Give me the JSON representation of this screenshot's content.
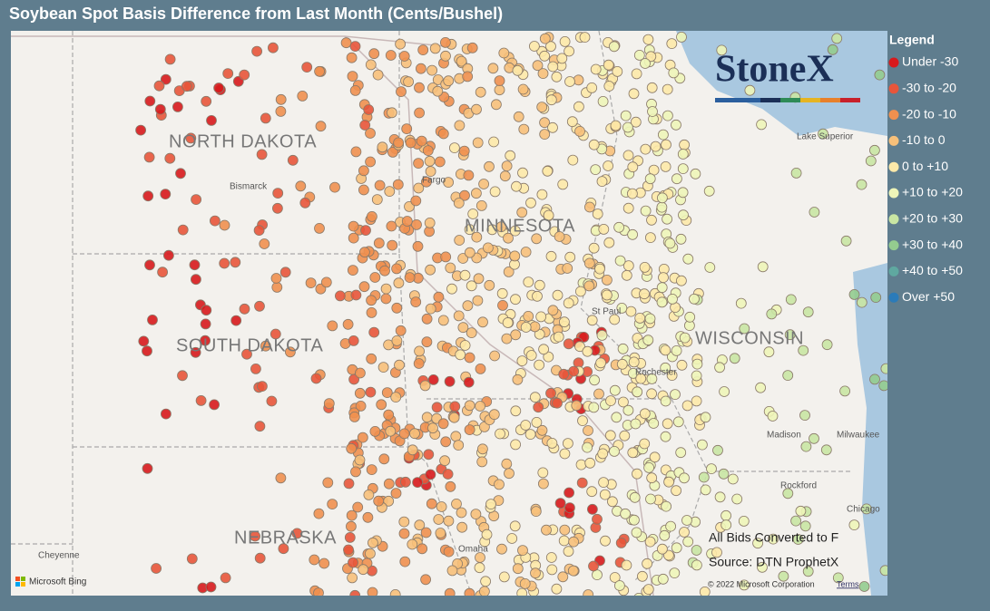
{
  "title": "Soybean Spot Basis Difference from Last Month (Cents/Bushel)",
  "legend": {
    "title": "Legend",
    "items": [
      {
        "label": "Under -30",
        "color": "#d7191c"
      },
      {
        "label": "-30 to -20",
        "color": "#e8553a"
      },
      {
        "label": "-20 to -10",
        "color": "#f0904f"
      },
      {
        "label": "-10 to 0",
        "color": "#f7c07a"
      },
      {
        "label": "0 to +10",
        "color": "#fde9a9"
      },
      {
        "label": "+10 to +20",
        "color": "#eef5b8"
      },
      {
        "label": "+20 to +30",
        "color": "#c9e6a3"
      },
      {
        "label": "+30 to +40",
        "color": "#94cc8f"
      },
      {
        "label": "+40 to +50",
        "color": "#5fa8a0"
      },
      {
        "label": "Over +50",
        "color": "#2b7bb9"
      }
    ]
  },
  "logo": "StoneX",
  "map": {
    "states": [
      "NORTH DAKOTA",
      "MINNESOTA",
      "SOUTH DAKOTA",
      "WISCONSIN",
      "NEBRASKA"
    ],
    "places": [
      "Bismarck",
      "Fargo",
      "St Paul",
      "Rochester",
      "Madison",
      "Milwaukee",
      "Rockford",
      "Chicago",
      "Cheyenne",
      "Omaha",
      "Lake Superior"
    ]
  },
  "notes": [
    "All Bids Converted to F",
    "Source: DTN ProphetX"
  ],
  "attribution": {
    "provider": "Microsoft Bing",
    "copyright": "© 2022 Microsoft Corporation",
    "terms": "Terms"
  }
}
